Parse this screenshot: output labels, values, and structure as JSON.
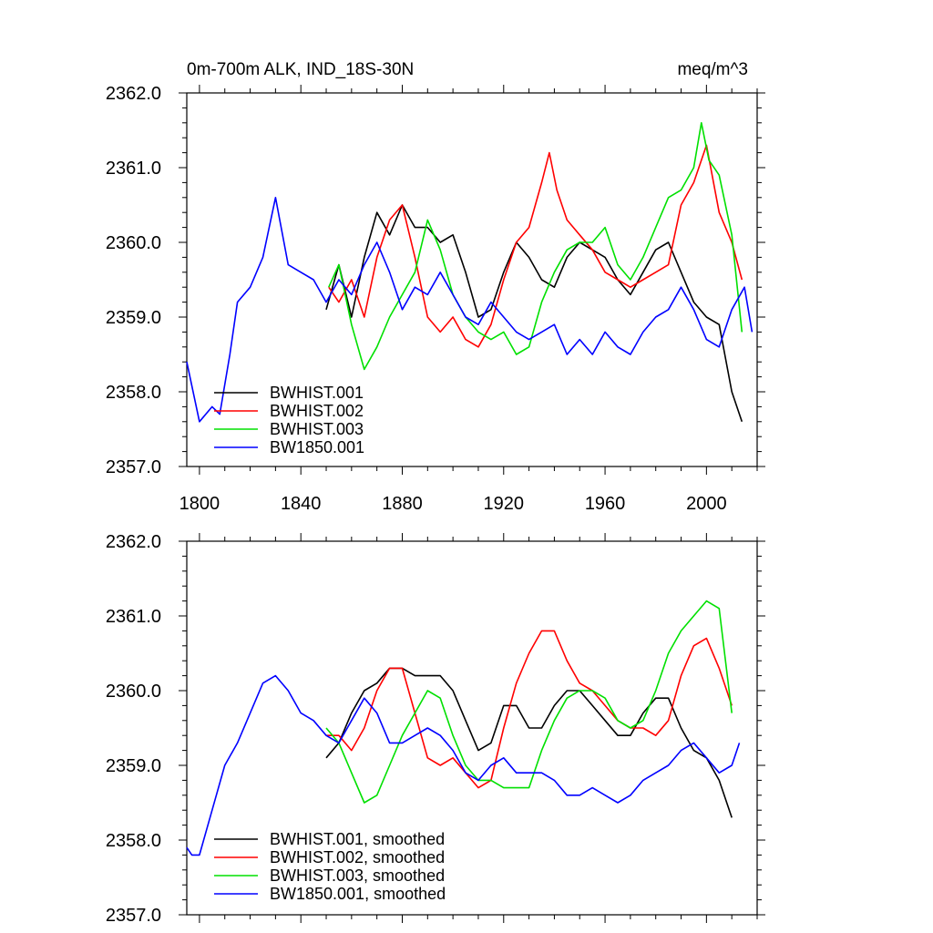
{
  "chart_data": [
    {
      "type": "line",
      "title_left": "0m-700m ALK, IND_18S-30N",
      "title_right": "meq/m^3",
      "xlim": [
        1795,
        2020
      ],
      "ylim": [
        2357.0,
        2362.0
      ],
      "xticks": [
        1800,
        1840,
        1880,
        1920,
        1960,
        2000
      ],
      "xtick_labels": [
        "1800",
        "1840",
        "1880",
        "1920",
        "1960",
        "2000"
      ],
      "yticks": [
        2357.0,
        2358.0,
        2359.0,
        2360.0,
        2361.0,
        2362.0
      ],
      "ytick_labels": [
        "2357.0",
        "2358.0",
        "2359.0",
        "2360.0",
        "2361.0",
        "2362.0"
      ],
      "legend_position": "bottom-left",
      "series": [
        {
          "name": "BWHIST.001",
          "color": "#000000",
          "x": [
            1850,
            1855,
            1860,
            1865,
            1870,
            1875,
            1880,
            1885,
            1890,
            1895,
            1900,
            1905,
            1910,
            1915,
            1920,
            1925,
            1930,
            1935,
            1940,
            1945,
            1950,
            1955,
            1960,
            1965,
            1970,
            1975,
            1980,
            1985,
            1990,
            1995,
            2000,
            2005,
            2010,
            2014
          ],
          "y": [
            2359.1,
            2359.7,
            2359.0,
            2359.8,
            2360.4,
            2360.1,
            2360.5,
            2360.2,
            2360.2,
            2360.0,
            2360.1,
            2359.6,
            2359.0,
            2359.1,
            2359.6,
            2360.0,
            2359.8,
            2359.5,
            2359.4,
            2359.8,
            2360.0,
            2359.9,
            2359.8,
            2359.5,
            2359.3,
            2359.6,
            2359.9,
            2360.0,
            2359.6,
            2359.2,
            2359.0,
            2358.9,
            2358.0,
            2357.6
          ]
        },
        {
          "name": "BWHIST.002",
          "color": "#ff0000",
          "x": [
            1851,
            1855,
            1860,
            1865,
            1870,
            1875,
            1880,
            1885,
            1890,
            1895,
            1900,
            1905,
            1910,
            1915,
            1920,
            1925,
            1930,
            1935,
            1938,
            1941,
            1945,
            1950,
            1955,
            1960,
            1965,
            1970,
            1975,
            1980,
            1985,
            1990,
            1995,
            2000,
            2005,
            2010,
            2014
          ],
          "y": [
            2359.4,
            2359.2,
            2359.5,
            2359.0,
            2359.8,
            2360.3,
            2360.5,
            2359.8,
            2359.0,
            2358.8,
            2359.0,
            2358.7,
            2358.6,
            2358.9,
            2359.5,
            2360.0,
            2360.2,
            2360.8,
            2361.2,
            2360.7,
            2360.3,
            2360.1,
            2359.9,
            2359.6,
            2359.5,
            2359.4,
            2359.5,
            2359.6,
            2359.7,
            2360.5,
            2360.8,
            2361.3,
            2360.4,
            2360.0,
            2359.5
          ]
        },
        {
          "name": "BWHIST.003",
          "color": "#00e000",
          "x": [
            1851,
            1855,
            1860,
            1865,
            1870,
            1875,
            1880,
            1885,
            1890,
            1895,
            1900,
            1905,
            1910,
            1915,
            1920,
            1925,
            1930,
            1935,
            1940,
            1945,
            1950,
            1955,
            1960,
            1965,
            1970,
            1975,
            1980,
            1985,
            1990,
            1995,
            1998,
            2001,
            2005,
            2010,
            2014
          ],
          "y": [
            2359.4,
            2359.7,
            2358.9,
            2358.3,
            2358.6,
            2359.0,
            2359.3,
            2359.6,
            2360.3,
            2359.9,
            2359.3,
            2359.0,
            2358.8,
            2358.7,
            2358.8,
            2358.5,
            2358.6,
            2359.2,
            2359.6,
            2359.9,
            2360.0,
            2360.0,
            2360.2,
            2359.7,
            2359.5,
            2359.8,
            2360.2,
            2360.6,
            2360.7,
            2361.0,
            2361.6,
            2361.1,
            2360.9,
            2360.1,
            2358.8
          ]
        },
        {
          "name": "BW1850.001",
          "color": "#0000ff",
          "x": [
            1795,
            1800,
            1805,
            1808,
            1812,
            1815,
            1820,
            1825,
            1830,
            1835,
            1840,
            1845,
            1850,
            1855,
            1860,
            1865,
            1870,
            1875,
            1880,
            1885,
            1890,
            1895,
            1900,
            1905,
            1910,
            1915,
            1920,
            1925,
            1930,
            1935,
            1940,
            1945,
            1950,
            1955,
            1960,
            1965,
            1970,
            1975,
            1980,
            1985,
            1990,
            1995,
            2000,
            2005,
            2010,
            2015,
            2018
          ],
          "y": [
            2358.4,
            2357.6,
            2357.8,
            2357.7,
            2358.5,
            2359.2,
            2359.4,
            2359.8,
            2360.6,
            2359.7,
            2359.6,
            2359.5,
            2359.2,
            2359.5,
            2359.3,
            2359.7,
            2360.0,
            2359.6,
            2359.1,
            2359.4,
            2359.3,
            2359.6,
            2359.3,
            2359.0,
            2358.9,
            2359.2,
            2359.0,
            2358.8,
            2358.7,
            2358.8,
            2358.9,
            2358.5,
            2358.7,
            2358.5,
            2358.8,
            2358.6,
            2358.5,
            2358.8,
            2359.0,
            2359.1,
            2359.4,
            2359.1,
            2358.7,
            2358.6,
            2359.1,
            2359.4,
            2358.8
          ]
        }
      ]
    },
    {
      "type": "line",
      "xlim": [
        1795,
        2020
      ],
      "ylim": [
        2357.0,
        2362.0
      ],
      "xticks": [
        1800,
        1840,
        1880,
        1920,
        1960,
        2000
      ],
      "yticks": [
        2357.0,
        2358.0,
        2359.0,
        2360.0,
        2361.0,
        2362.0
      ],
      "ytick_labels": [
        "2357.0",
        "2358.0",
        "2359.0",
        "2360.0",
        "2361.0",
        "2362.0"
      ],
      "legend_position": "bottom-left",
      "series": [
        {
          "name": "BWHIST.001, smoothed",
          "color": "#000000",
          "x": [
            1850,
            1855,
            1860,
            1865,
            1870,
            1875,
            1880,
            1885,
            1890,
            1895,
            1900,
            1905,
            1910,
            1915,
            1920,
            1925,
            1930,
            1935,
            1940,
            1945,
            1950,
            1955,
            1960,
            1965,
            1970,
            1975,
            1980,
            1985,
            1990,
            1995,
            2000,
            2005,
            2010
          ],
          "y": [
            2359.1,
            2359.3,
            2359.7,
            2360.0,
            2360.1,
            2360.3,
            2360.3,
            2360.2,
            2360.2,
            2360.2,
            2360.0,
            2359.6,
            2359.2,
            2359.3,
            2359.8,
            2359.8,
            2359.5,
            2359.5,
            2359.8,
            2360.0,
            2360.0,
            2359.8,
            2359.6,
            2359.4,
            2359.4,
            2359.7,
            2359.9,
            2359.9,
            2359.5,
            2359.2,
            2359.1,
            2358.8,
            2358.3
          ]
        },
        {
          "name": "BWHIST.002, smoothed",
          "color": "#ff0000",
          "x": [
            1850,
            1855,
            1860,
            1865,
            1870,
            1875,
            1880,
            1885,
            1890,
            1895,
            1900,
            1905,
            1910,
            1915,
            1920,
            1925,
            1930,
            1935,
            1940,
            1945,
            1950,
            1955,
            1960,
            1965,
            1970,
            1975,
            1980,
            1985,
            1990,
            1995,
            2000,
            2005,
            2010
          ],
          "y": [
            2359.4,
            2359.4,
            2359.2,
            2359.5,
            2360.0,
            2360.3,
            2360.3,
            2359.7,
            2359.1,
            2359.0,
            2359.1,
            2358.9,
            2358.7,
            2358.8,
            2359.5,
            2360.1,
            2360.5,
            2360.8,
            2360.8,
            2360.4,
            2360.1,
            2360.0,
            2359.8,
            2359.6,
            2359.5,
            2359.5,
            2359.4,
            2359.6,
            2360.2,
            2360.6,
            2360.7,
            2360.3,
            2359.8
          ]
        },
        {
          "name": "BWHIST.003, smoothed",
          "color": "#00e000",
          "x": [
            1850,
            1855,
            1860,
            1865,
            1870,
            1875,
            1880,
            1885,
            1890,
            1895,
            1900,
            1905,
            1910,
            1915,
            1920,
            1925,
            1930,
            1935,
            1940,
            1945,
            1950,
            1955,
            1960,
            1965,
            1970,
            1975,
            1980,
            1985,
            1990,
            1995,
            2000,
            2005,
            2010
          ],
          "y": [
            2359.5,
            2359.3,
            2358.9,
            2358.5,
            2358.6,
            2359.0,
            2359.4,
            2359.7,
            2360.0,
            2359.9,
            2359.4,
            2359.0,
            2358.8,
            2358.8,
            2358.7,
            2358.7,
            2358.7,
            2359.2,
            2359.6,
            2359.9,
            2360.0,
            2360.0,
            2359.9,
            2359.6,
            2359.5,
            2359.6,
            2360.0,
            2360.5,
            2360.8,
            2361.0,
            2361.2,
            2361.1,
            2359.7
          ]
        },
        {
          "name": "BW1850.001, smoothed",
          "color": "#0000ff",
          "x": [
            1795,
            1797,
            1800,
            1805,
            1810,
            1815,
            1820,
            1825,
            1830,
            1835,
            1840,
            1845,
            1850,
            1855,
            1860,
            1865,
            1870,
            1875,
            1880,
            1885,
            1890,
            1895,
            1900,
            1905,
            1910,
            1915,
            1920,
            1925,
            1930,
            1935,
            1940,
            1945,
            1950,
            1955,
            1960,
            1965,
            1970,
            1975,
            1980,
            1985,
            1990,
            1995,
            2000,
            2005,
            2010,
            2013
          ],
          "y": [
            2357.9,
            2357.8,
            2357.8,
            2358.4,
            2359.0,
            2359.3,
            2359.7,
            2360.1,
            2360.2,
            2360.0,
            2359.7,
            2359.6,
            2359.4,
            2359.3,
            2359.6,
            2359.9,
            2359.7,
            2359.3,
            2359.3,
            2359.4,
            2359.5,
            2359.4,
            2359.2,
            2358.9,
            2358.8,
            2359.0,
            2359.1,
            2358.9,
            2358.9,
            2358.9,
            2358.8,
            2358.6,
            2358.6,
            2358.7,
            2358.6,
            2358.5,
            2358.6,
            2358.8,
            2358.9,
            2359.0,
            2359.2,
            2359.3,
            2359.1,
            2358.9,
            2359.0,
            2359.3
          ]
        }
      ]
    }
  ]
}
